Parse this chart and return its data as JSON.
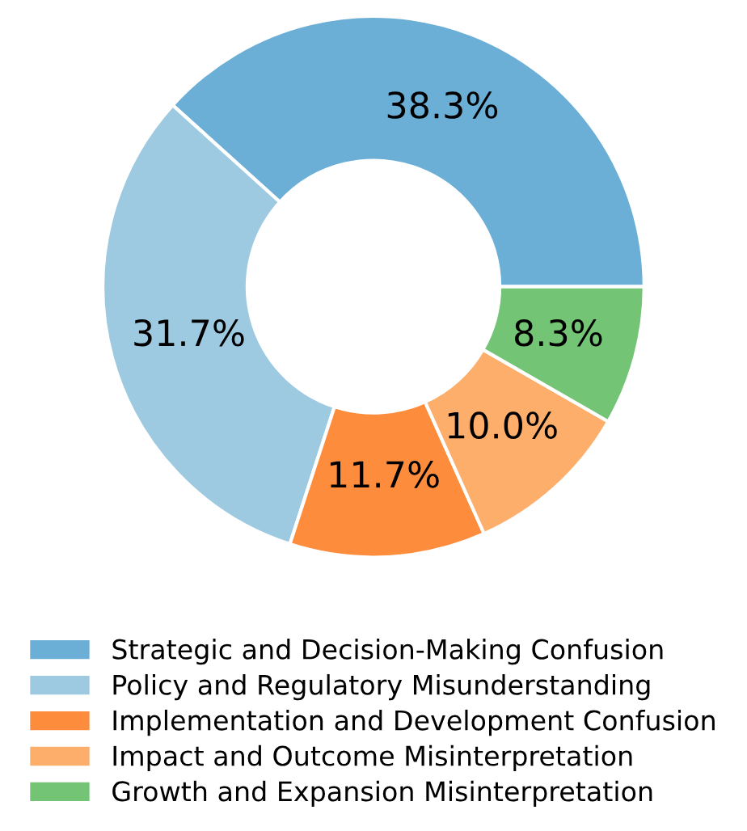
{
  "chart_data": {
    "type": "donut",
    "categories": [
      "Strategic and Decision-Making Confusion",
      "Policy and Regulatory Misunderstanding",
      "Implementation and Development Confusion",
      "Impact and Outcome Misinterpretation",
      "Growth and Expansion Misinterpretation"
    ],
    "values": [
      38.3,
      31.7,
      11.7,
      10.0,
      8.3
    ],
    "value_labels": [
      "38.3%",
      "31.7%",
      "11.7%",
      "10.0%",
      "8.3%"
    ],
    "colors": [
      "#6baed6",
      "#9ecae1",
      "#fd8d3c",
      "#fdae6b",
      "#74c476"
    ],
    "legend": "bottom"
  }
}
